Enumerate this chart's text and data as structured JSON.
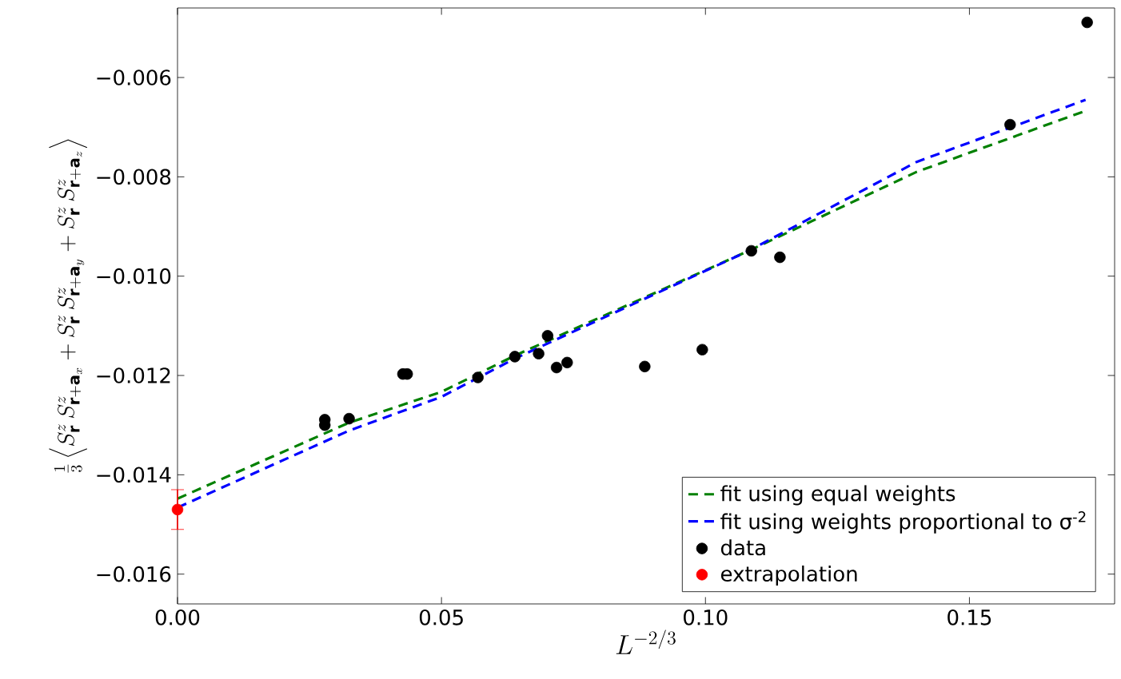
{
  "chart_data": {
    "type": "scatter",
    "xlabel": "L^{-2/3}",
    "ylabel": "\\frac{1}{3}\\left\\langle S^z_{\\mathbf{r}}\\,S^z_{\\mathbf{r}+\\mathbf{a}_x}+S^z_{\\mathbf{r}}\\,S^z_{\\mathbf{r}+\\mathbf{a}_y}+S^z_{\\mathbf{r}}\\,S^z_{\\mathbf{r}+\\mathbf{a}_z}\\right\\rangle",
    "xlim": [
      0,
      0.1775
    ],
    "ylim": [
      -0.0166,
      -0.0046
    ],
    "xticks": [
      {
        "value": 0,
        "label": "0.00"
      },
      {
        "value": 0.05,
        "label": "0.05"
      },
      {
        "value": 0.1,
        "label": "0.10"
      },
      {
        "value": 0.15,
        "label": "0.15"
      }
    ],
    "yticks": [
      {
        "value": -0.016,
        "label": "−0.016"
      },
      {
        "value": -0.014,
        "label": "−0.014"
      },
      {
        "value": -0.012,
        "label": "−0.012"
      },
      {
        "value": -0.01,
        "label": "−0.010"
      },
      {
        "value": -0.008,
        "label": "−0.008"
      },
      {
        "value": -0.006,
        "label": "−0.006"
      }
    ],
    "grid": false,
    "legend": "bottom right",
    "series": [
      {
        "name": "fit using equal weights",
        "type": "line",
        "line_style": "dashed",
        "marker": "none",
        "color": "#008000",
        "x": [
          0,
          0.0325,
          0.05,
          0.0639,
          0.108,
          0.14,
          0.172
        ],
        "values": [
          -0.01448,
          -0.01295,
          -0.01233,
          -0.0116,
          -0.0095,
          -0.0079,
          -0.00667
        ]
      },
      {
        "name": "fit using weights proportional to σ$^{-2}$",
        "type": "line",
        "line_style": "dashed",
        "marker": "none",
        "color": "#0000ff",
        "x": [
          0,
          0.0325,
          0.05,
          0.0639,
          0.108,
          0.14,
          0.172
        ],
        "values": [
          -0.01466,
          -0.01311,
          -0.01243,
          -0.01166,
          -0.0095,
          -0.0077,
          -0.00645
        ]
      },
      {
        "name": "data",
        "marker": "circle",
        "color": "#000000",
        "x": [
          0.0279,
          0.0279,
          0.0325,
          0.0427,
          0.0435,
          0.0569,
          0.0639,
          0.0684,
          0.0701,
          0.0718,
          0.0738,
          0.0885,
          0.0994,
          0.1087,
          0.1141,
          0.1577,
          0.1723
        ],
        "values": [
          -0.01289,
          -0.013,
          -0.01287,
          -0.01197,
          -0.01197,
          -0.01204,
          -0.01162,
          -0.01156,
          -0.0112,
          -0.01184,
          -0.01174,
          -0.01182,
          -0.01148,
          -0.00949,
          -0.00962,
          -0.00695,
          -0.00489
        ]
      },
      {
        "name": "extrapolation",
        "marker": "circle",
        "color": "#ff0000",
        "x": [
          0
        ],
        "values": [
          -0.0147
        ],
        "errors": [
          0.0004
        ]
      }
    ]
  }
}
